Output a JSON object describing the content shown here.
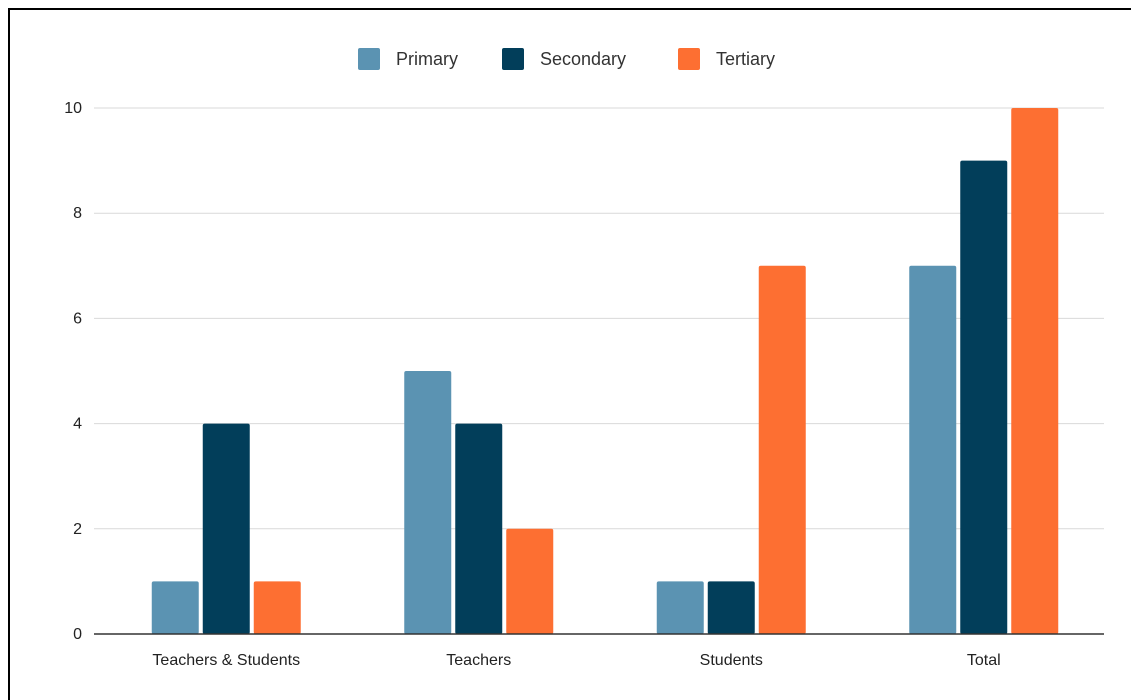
{
  "chart_data": {
    "type": "bar",
    "title": "",
    "xlabel": "",
    "ylabel": "",
    "categories": [
      "Teachers & Students",
      "Teachers",
      "Students",
      "Total"
    ],
    "series": [
      {
        "name": "Primary",
        "color": "#5b93b2",
        "values": [
          1,
          5,
          1,
          7
        ]
      },
      {
        "name": "Secondary",
        "color": "#023e5a",
        "values": [
          4,
          4,
          1,
          9
        ]
      },
      {
        "name": "Tertiary",
        "color": "#fd6f32",
        "values": [
          1,
          2,
          7,
          10
        ]
      }
    ],
    "ylim": [
      0,
      10
    ],
    "yticks": [
      "0",
      "2",
      "4",
      "6",
      "8",
      "10"
    ],
    "grid": true,
    "legend_position": "top"
  }
}
